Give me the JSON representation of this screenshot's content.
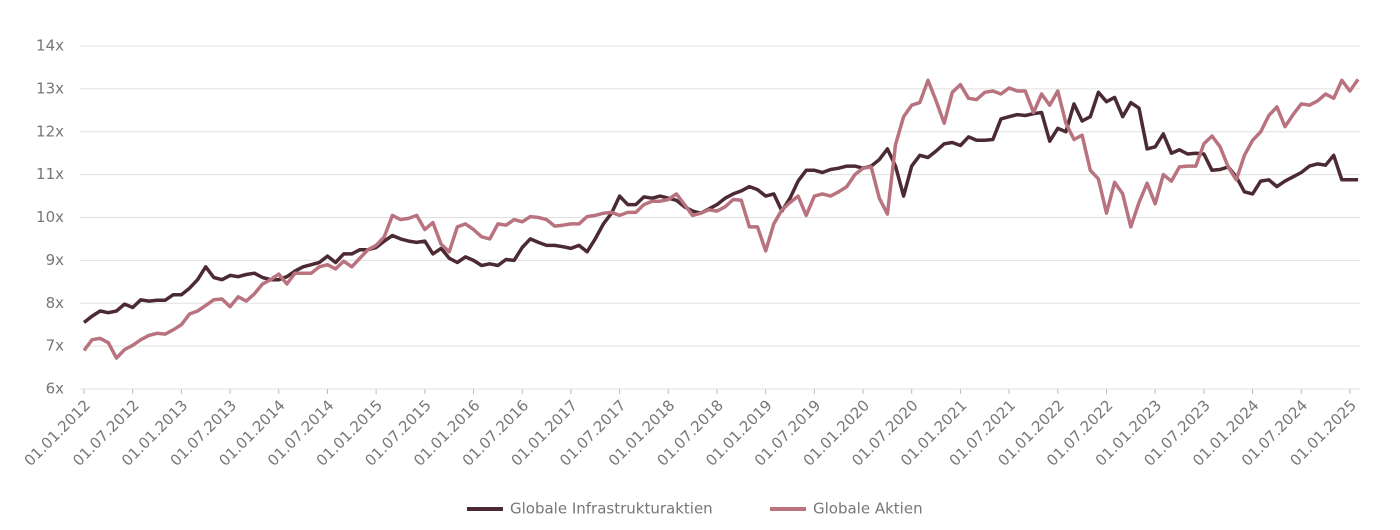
{
  "chart_data": {
    "type": "line",
    "categories": [
      "01.01.2012",
      null,
      null,
      null,
      null,
      null,
      "01.07.2012",
      null,
      null,
      null,
      null,
      null,
      "01.01.2013",
      null,
      null,
      null,
      null,
      null,
      "01.07.2013",
      null,
      null,
      null,
      null,
      null,
      "01.01.2014",
      null,
      null,
      null,
      null,
      null,
      "01.07.2014",
      null,
      null,
      null,
      null,
      null,
      "01.01.2015",
      null,
      null,
      null,
      null,
      null,
      "01.07.2015",
      null,
      null,
      null,
      null,
      null,
      "01.01.2016",
      null,
      null,
      null,
      null,
      null,
      "01.07.2016",
      null,
      null,
      null,
      null,
      null,
      "01.01.2017",
      null,
      null,
      null,
      null,
      null,
      "01.07.2017",
      null,
      null,
      null,
      null,
      null,
      "01.01.2018",
      null,
      null,
      null,
      null,
      null,
      "01.07.2018",
      null,
      null,
      null,
      null,
      null,
      "01.01.2019",
      null,
      null,
      null,
      null,
      null,
      "01.07.2019",
      null,
      null,
      null,
      null,
      null,
      "01.01.2020",
      null,
      null,
      null,
      null,
      null,
      "01.07.2020",
      null,
      null,
      null,
      null,
      null,
      "01.01.2021",
      null,
      null,
      null,
      null,
      null,
      "01.07.2021",
      null,
      null,
      null,
      null,
      null,
      "01.01.2022",
      null,
      null,
      null,
      null,
      null,
      "01.07.2022",
      null,
      null,
      null,
      null,
      null,
      "01.01.2023",
      null,
      null,
      null,
      null,
      null,
      "01.07.2023",
      null,
      null,
      null,
      null,
      null,
      "01.01.2024",
      null,
      null,
      null,
      null,
      null,
      "01.07.2024",
      null,
      null,
      null,
      null,
      null,
      "01.01.2025",
      null
    ],
    "series": [
      {
        "name": "Globale Infrastrukturaktien",
        "color": "#4b2a33",
        "values": [
          7.55,
          7.7,
          7.82,
          7.78,
          7.82,
          7.98,
          7.9,
          8.08,
          8.05,
          8.07,
          8.07,
          8.2,
          8.2,
          8.35,
          8.55,
          8.85,
          8.6,
          8.55,
          8.65,
          8.62,
          8.67,
          8.7,
          8.6,
          8.55,
          8.55,
          8.62,
          8.75,
          8.85,
          8.9,
          8.95,
          9.1,
          8.95,
          9.15,
          9.15,
          9.25,
          9.25,
          9.3,
          9.45,
          9.58,
          9.5,
          9.45,
          9.42,
          9.45,
          9.15,
          9.28,
          9.05,
          8.95,
          9.08,
          9.0,
          8.88,
          8.92,
          8.88,
          9.02,
          9.0,
          9.3,
          9.5,
          9.42,
          9.35,
          9.35,
          9.32,
          9.28,
          9.35,
          9.2,
          9.5,
          9.85,
          10.1,
          10.5,
          10.3,
          10.3,
          10.48,
          10.45,
          10.5,
          10.45,
          10.4,
          10.25,
          10.15,
          10.1,
          10.2,
          10.3,
          10.45,
          10.55,
          10.62,
          10.72,
          10.65,
          10.5,
          10.55,
          10.15,
          10.45,
          10.85,
          11.1,
          11.1,
          11.05,
          11.12,
          11.15,
          11.2,
          11.2,
          11.15,
          11.2,
          11.35,
          11.6,
          11.2,
          10.5,
          11.2,
          11.45,
          11.4,
          11.55,
          11.72,
          11.75,
          11.68,
          11.88,
          11.8,
          11.8,
          11.82,
          12.3,
          12.35,
          12.4,
          12.38,
          12.42,
          12.45,
          11.78,
          12.08,
          12.0,
          12.65,
          12.25,
          12.35,
          12.92,
          12.7,
          12.8,
          12.35,
          12.68,
          12.55,
          11.6,
          11.65,
          11.95,
          11.5,
          11.58,
          11.48,
          11.5,
          11.48,
          11.1,
          11.12,
          11.18,
          10.95,
          10.6,
          10.55,
          10.85,
          10.88,
          10.72,
          10.85,
          10.95,
          11.05,
          11.2,
          11.25,
          11.22,
          11.45,
          10.88,
          10.88,
          10.88
        ]
      },
      {
        "name": "Globale Aktien",
        "color": "#b8737f",
        "values": [
          6.9,
          7.15,
          7.18,
          7.08,
          6.72,
          6.92,
          7.02,
          7.15,
          7.25,
          7.3,
          7.28,
          7.38,
          7.5,
          7.75,
          7.82,
          7.95,
          8.08,
          8.1,
          7.92,
          8.15,
          8.05,
          8.22,
          8.45,
          8.55,
          8.68,
          8.45,
          8.7,
          8.7,
          8.7,
          8.85,
          8.9,
          8.8,
          8.98,
          8.85,
          9.05,
          9.25,
          9.35,
          9.55,
          10.05,
          9.95,
          9.98,
          10.05,
          9.72,
          9.88,
          9.38,
          9.2,
          9.78,
          9.85,
          9.72,
          9.55,
          9.5,
          9.85,
          9.82,
          9.95,
          9.9,
          10.02,
          10.0,
          9.95,
          9.8,
          9.82,
          9.85,
          9.85,
          10.02,
          10.05,
          10.1,
          10.12,
          10.05,
          10.12,
          10.12,
          10.3,
          10.38,
          10.38,
          10.42,
          10.55,
          10.3,
          10.05,
          10.1,
          10.18,
          10.15,
          10.25,
          10.42,
          10.4,
          9.78,
          9.78,
          9.22,
          9.85,
          10.18,
          10.35,
          10.5,
          10.05,
          10.5,
          10.55,
          10.5,
          10.6,
          10.72,
          11.0,
          11.15,
          11.18,
          10.45,
          10.08,
          11.7,
          12.35,
          12.62,
          12.68,
          13.2,
          12.72,
          12.2,
          12.92,
          13.1,
          12.78,
          12.75,
          12.92,
          12.95,
          12.88,
          13.02,
          12.95,
          12.95,
          12.45,
          12.88,
          12.62,
          12.95,
          12.2,
          11.82,
          11.92,
          11.1,
          10.9,
          10.1,
          10.82,
          10.55,
          9.78,
          10.35,
          10.8,
          10.32,
          11.0,
          10.85,
          11.18,
          11.2,
          11.2,
          11.72,
          11.9,
          11.65,
          11.18,
          10.88,
          11.45,
          11.8,
          12.0,
          12.38,
          12.58,
          12.12,
          12.4,
          12.65,
          12.62,
          12.72,
          12.88,
          12.78,
          13.2,
          12.95,
          13.22
        ]
      }
    ],
    "ylim": [
      6,
      14
    ],
    "yticks": [
      {
        "value": 6,
        "label": "6x"
      },
      {
        "value": 7,
        "label": "7x"
      },
      {
        "value": 8,
        "label": "8x"
      },
      {
        "value": 9,
        "label": "9x"
      },
      {
        "value": 10,
        "label": "10x"
      },
      {
        "value": 11,
        "label": "11x"
      },
      {
        "value": 12,
        "label": "12x"
      },
      {
        "value": 13,
        "label": "13x"
      },
      {
        "value": 14,
        "label": "14x"
      }
    ],
    "grid": true,
    "legend": "bottom"
  }
}
